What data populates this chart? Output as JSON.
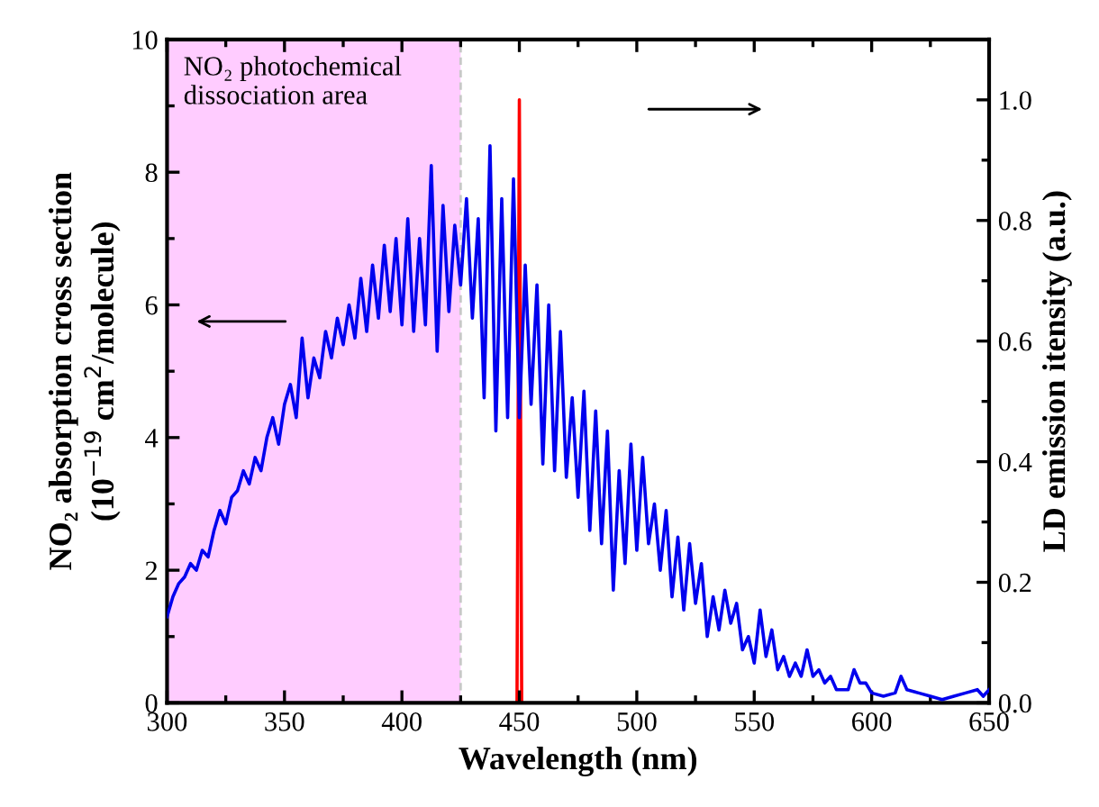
{
  "chart_data": {
    "type": "line",
    "xlabel": "Wavelength (nm)",
    "ylabel": "NO₂ absorption cross section\n(10$^{−19}$ cm$^{2}$/molecule)",
    "y2label": "LD emission itensity (a.u.)",
    "xlim": [
      300,
      650
    ],
    "xticks": [
      300,
      350,
      400,
      450,
      500,
      550,
      600,
      650
    ],
    "ylim": [
      0,
      10
    ],
    "yticks": [
      0,
      2,
      4,
      6,
      8,
      10
    ],
    "y2lim": [
      0,
      1.1
    ],
    "y2ticks": [
      {
        "value": 0,
        "label": "0.0"
      },
      {
        "value": 0.2,
        "label": "0.2"
      },
      {
        "value": 0.4,
        "label": "0.4"
      },
      {
        "value": 0.6,
        "label": "0.6"
      },
      {
        "value": 0.8,
        "label": "0.8"
      },
      {
        "value": 1.0,
        "label": "1.0"
      }
    ],
    "bands": [
      {
        "axis": "x",
        "from": 300,
        "to": 425,
        "label": "NO₂ photochemical\ndissociation area",
        "color": "#ffccff"
      }
    ],
    "ref_lines": [
      {
        "axis": "x",
        "value": 425,
        "label": null,
        "color": "#c8c8c8",
        "line_style": "dashed"
      }
    ],
    "grid": false,
    "series": [
      {
        "color": "#0000ee",
        "x": [
          300,
          302.5,
          305,
          307.5,
          310,
          312.5,
          315,
          317.5,
          320,
          322.5,
          325,
          327.5,
          330,
          332.5,
          335,
          337.5,
          340,
          342.5,
          345,
          347.5,
          350,
          352.5,
          355,
          357.5,
          360,
          362.5,
          365,
          367.5,
          370,
          372.5,
          375,
          377.5,
          380,
          382.5,
          385,
          387.5,
          390,
          392.5,
          395,
          397.5,
          400,
          402.5,
          405,
          407.5,
          410,
          412.5,
          415,
          417.5,
          420,
          422.5,
          425,
          427.5,
          430,
          432.5,
          435,
          437.5,
          440,
          442.5,
          445,
          447.5,
          450,
          452.5,
          455,
          457.5,
          460,
          462.5,
          465,
          467.5,
          470,
          472.5,
          475,
          477.5,
          480,
          482.5,
          485,
          487.5,
          490,
          492.5,
          495,
          497.5,
          500,
          502.5,
          505,
          507.5,
          510,
          512.5,
          515,
          517.5,
          520,
          522.5,
          525,
          527.5,
          530,
          532.5,
          535,
          537.5,
          540,
          542.5,
          545,
          547.5,
          550,
          552.5,
          555,
          557.5,
          560,
          562.5,
          565,
          567.5,
          570,
          572.5,
          575,
          577.5,
          580,
          582.5,
          585,
          587.5,
          590,
          592.5,
          595,
          597.5,
          600,
          605,
          610,
          612.5,
          615,
          620,
          625,
          630,
          635,
          640,
          645,
          647.5,
          650
        ],
        "values": [
          1.3,
          1.6,
          1.8,
          1.9,
          2.1,
          2.0,
          2.3,
          2.2,
          2.6,
          2.9,
          2.7,
          3.1,
          3.2,
          3.5,
          3.3,
          3.7,
          3.5,
          4.0,
          4.3,
          3.9,
          4.5,
          4.8,
          4.3,
          5.5,
          4.6,
          5.2,
          4.9,
          5.6,
          5.2,
          5.8,
          5.4,
          6.0,
          5.5,
          6.4,
          5.6,
          6.6,
          5.8,
          6.9,
          5.9,
          7.0,
          5.7,
          7.3,
          5.6,
          7.0,
          5.7,
          8.1,
          5.3,
          7.5,
          5.9,
          7.2,
          6.3,
          7.6,
          5.8,
          7.3,
          4.6,
          8.4,
          4.1,
          7.6,
          4.3,
          7.9,
          4.3,
          6.6,
          4.5,
          6.3,
          3.6,
          6.0,
          3.5,
          5.6,
          3.4,
          4.6,
          3.1,
          4.7,
          2.6,
          4.4,
          2.4,
          4.1,
          1.7,
          3.5,
          2.1,
          3.9,
          2.3,
          3.7,
          2.4,
          3.0,
          2.0,
          2.9,
          1.6,
          2.5,
          1.4,
          2.4,
          1.5,
          2.1,
          1.0,
          1.6,
          1.1,
          1.7,
          1.2,
          1.5,
          0.8,
          1.0,
          0.6,
          1.4,
          0.7,
          1.1,
          0.5,
          0.7,
          0.4,
          0.6,
          0.4,
          0.8,
          0.4,
          0.5,
          0.3,
          0.4,
          0.2,
          0.2,
          0.2,
          0.5,
          0.3,
          0.3,
          0.15,
          0.1,
          0.15,
          0.4,
          0.2,
          0.15,
          0.1,
          0.05,
          0.1,
          0.15,
          0.2,
          0.1,
          0.2
        ]
      },
      {
        "color": "#ff0000",
        "axis": "y2",
        "x": [
          449,
          450,
          451
        ],
        "values": [
          0,
          1.0,
          0
        ]
      }
    ]
  }
}
